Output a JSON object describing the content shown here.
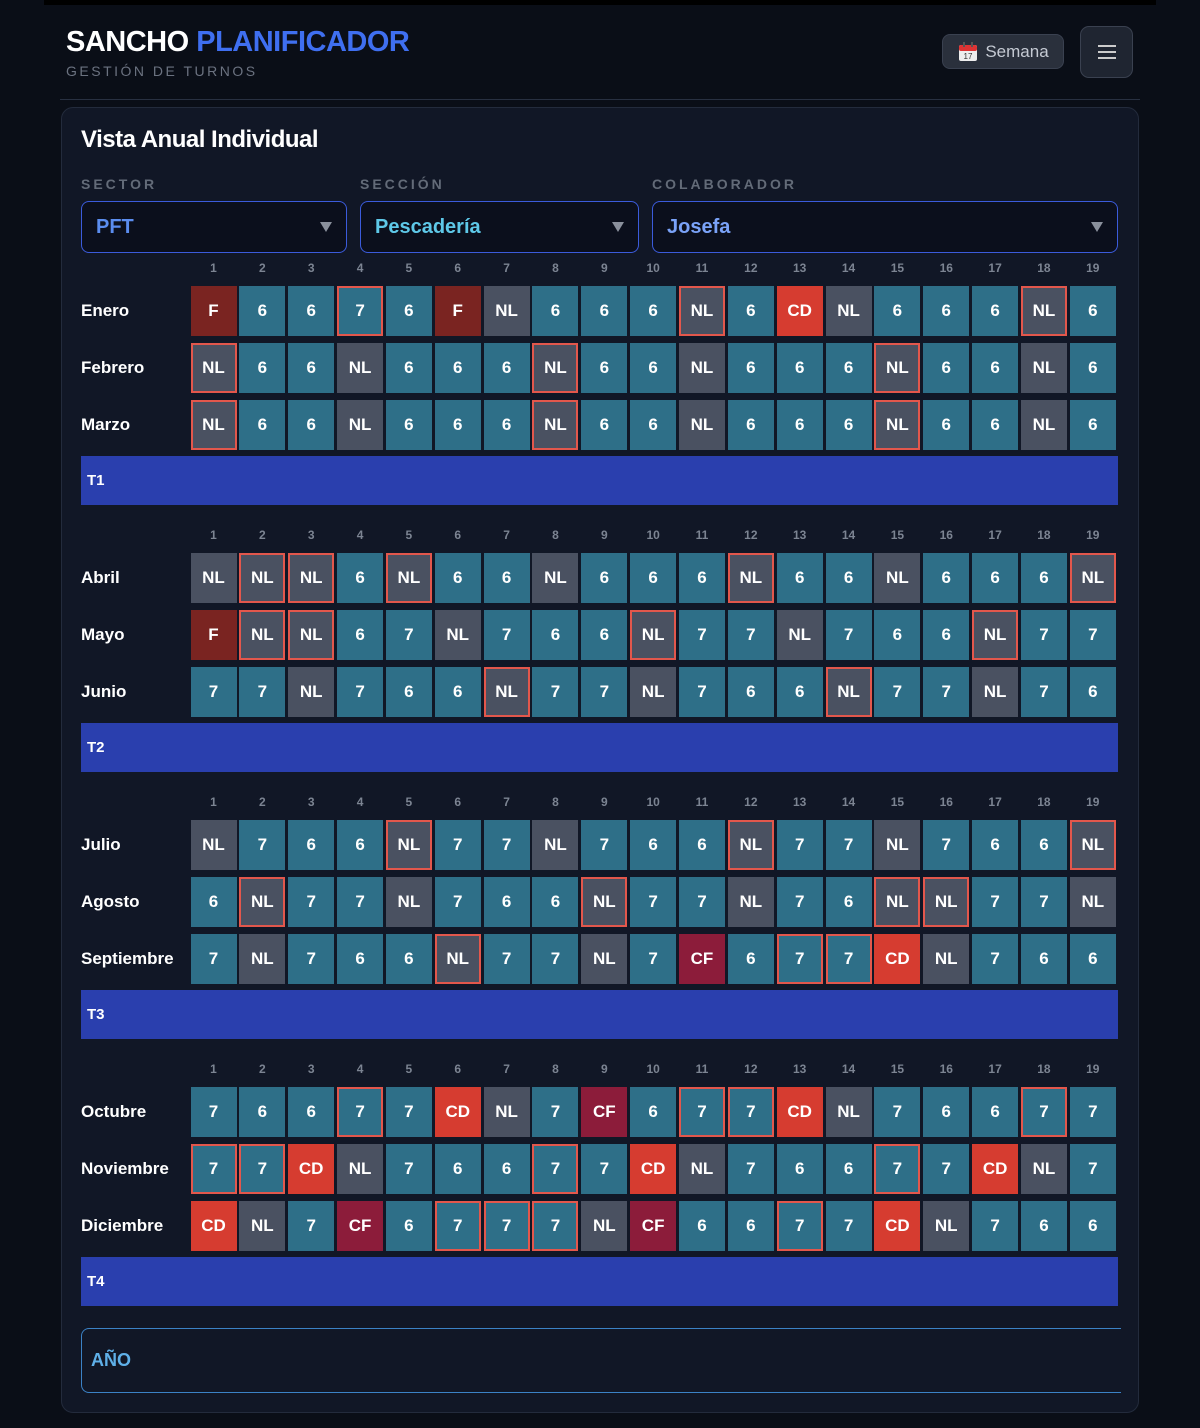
{
  "header": {
    "brand": "SANCHO",
    "brand_accent": "PLANIFICADOR",
    "subtitle": "GESTIÓN DE TURNOS",
    "view_button": "Semana"
  },
  "panel": {
    "title": "Vista Anual Individual",
    "filters": [
      {
        "label": "SECTOR",
        "value": "PFT"
      },
      {
        "label": "SECCIÓN",
        "value": "Pescadería"
      },
      {
        "label": "COLABORADOR",
        "value": "Josefa"
      }
    ],
    "days": [
      1,
      2,
      3,
      4,
      5,
      6,
      7,
      8,
      9,
      10,
      11,
      12,
      13,
      14,
      15,
      16,
      17,
      18,
      19
    ],
    "quarters": [
      {
        "label": "T1",
        "months": [
          {
            "name": "Enero",
            "cells": [
              "F",
              "6",
              "6",
              {
                "label": "7",
                "outlined": true
              },
              "6",
              "F",
              "NL",
              "6",
              "6",
              "6",
              {
                "label": "NL",
                "outlined": true
              },
              "6",
              "CD",
              "NL",
              "6",
              "6",
              "6",
              {
                "label": "NL",
                "outlined": true
              },
              "6"
            ]
          },
          {
            "name": "Febrero",
            "cells": [
              {
                "label": "NL",
                "outlined": true
              },
              "6",
              "6",
              "NL",
              "6",
              "6",
              "6",
              {
                "label": "NL",
                "outlined": true
              },
              "6",
              "6",
              "NL",
              "6",
              "6",
              "6",
              {
                "label": "NL",
                "outlined": true
              },
              "6",
              "6",
              "NL",
              "6"
            ]
          },
          {
            "name": "Marzo",
            "cells": [
              {
                "label": "NL",
                "outlined": true
              },
              "6",
              "6",
              "NL",
              "6",
              "6",
              "6",
              {
                "label": "NL",
                "outlined": true
              },
              "6",
              "6",
              "NL",
              "6",
              "6",
              "6",
              {
                "label": "NL",
                "outlined": true
              },
              "6",
              "6",
              "NL",
              "6"
            ]
          }
        ]
      },
      {
        "label": "T2",
        "months": [
          {
            "name": "Abril",
            "cells": [
              "NL",
              {
                "label": "NL",
                "outlined": true
              },
              {
                "label": "NL",
                "outlined": true
              },
              "6",
              {
                "label": "NL",
                "outlined": true
              },
              "6",
              "6",
              "NL",
              "6",
              "6",
              "6",
              {
                "label": "NL",
                "outlined": true
              },
              "6",
              "6",
              "NL",
              "6",
              "6",
              "6",
              {
                "label": "NL",
                "outlined": true
              }
            ]
          },
          {
            "name": "Mayo",
            "cells": [
              "F",
              {
                "label": "NL",
                "outlined": true
              },
              {
                "label": "NL",
                "outlined": true
              },
              "6",
              "7",
              "NL",
              "7",
              "6",
              "6",
              {
                "label": "NL",
                "outlined": true
              },
              "7",
              "7",
              "NL",
              "7",
              "6",
              "6",
              {
                "label": "NL",
                "outlined": true
              },
              "7",
              "7"
            ]
          },
          {
            "name": "Junio",
            "cells": [
              "7",
              "7",
              "NL",
              "7",
              "6",
              "6",
              {
                "label": "NL",
                "outlined": true
              },
              "7",
              "7",
              "NL",
              "7",
              "6",
              "6",
              {
                "label": "NL",
                "outlined": true
              },
              "7",
              "7",
              "NL",
              "7",
              "6"
            ]
          }
        ]
      },
      {
        "label": "T3",
        "months": [
          {
            "name": "Julio",
            "cells": [
              "NL",
              "7",
              "6",
              "6",
              {
                "label": "NL",
                "outlined": true
              },
              "7",
              "7",
              "NL",
              "7",
              "6",
              "6",
              {
                "label": "NL",
                "outlined": true
              },
              "7",
              "7",
              "NL",
              "7",
              "6",
              "6",
              {
                "label": "NL",
                "outlined": true
              }
            ]
          },
          {
            "name": "Agosto",
            "cells": [
              "6",
              {
                "label": "NL",
                "outlined": true
              },
              "7",
              "7",
              "NL",
              "7",
              "6",
              "6",
              {
                "label": "NL",
                "outlined": true
              },
              "7",
              "7",
              "NL",
              "7",
              "6",
              {
                "label": "NL",
                "outlined": true
              },
              {
                "label": "NL",
                "outlined": true
              },
              "7",
              "7",
              "NL"
            ]
          },
          {
            "name": "Septiembre",
            "cells": [
              "7",
              "NL",
              "7",
              "6",
              "6",
              {
                "label": "NL",
                "outlined": true
              },
              "7",
              "7",
              "NL",
              "7",
              "CF",
              "6",
              {
                "label": "7",
                "outlined": true
              },
              {
                "label": "7",
                "outlined": true
              },
              "CD",
              "NL",
              "7",
              "6",
              "6"
            ]
          }
        ]
      },
      {
        "label": "T4",
        "months": [
          {
            "name": "Octubre",
            "cells": [
              "7",
              "6",
              "6",
              {
                "label": "7",
                "outlined": true
              },
              "7",
              "CD",
              "NL",
              "7",
              "CF",
              "6",
              {
                "label": "7",
                "outlined": true
              },
              {
                "label": "7",
                "outlined": true
              },
              "CD",
              "NL",
              "7",
              "6",
              "6",
              {
                "label": "7",
                "outlined": true
              },
              "7"
            ]
          },
          {
            "name": "Noviembre",
            "cells": [
              {
                "label": "7",
                "outlined": true
              },
              {
                "label": "7",
                "outlined": true
              },
              "CD",
              "NL",
              "7",
              "6",
              "6",
              {
                "label": "7",
                "outlined": true
              },
              "7",
              "CD",
              "NL",
              "7",
              "6",
              "6",
              {
                "label": "7",
                "outlined": true
              },
              "7",
              "CD",
              "NL",
              "7"
            ]
          },
          {
            "name": "Diciembre",
            "cells": [
              "CD",
              "NL",
              "7",
              "CF",
              "6",
              {
                "label": "7",
                "outlined": true
              },
              {
                "label": "7",
                "outlined": true
              },
              {
                "label": "7",
                "outlined": true
              },
              "NL",
              "CF",
              "6",
              "6",
              {
                "label": "7",
                "outlined": true
              },
              "7",
              "CD",
              "NL",
              "7",
              "6",
              "6"
            ]
          }
        ]
      }
    ],
    "year_label": "AÑO"
  }
}
